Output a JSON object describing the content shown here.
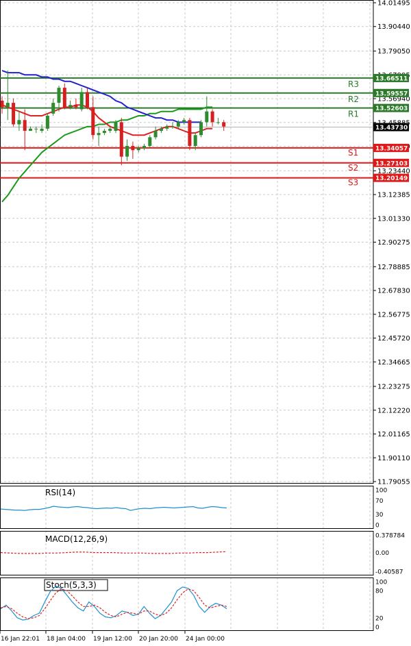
{
  "chart_data": {
    "type": "candlestick",
    "instrument_panel": {
      "y_ticks": [
        "14.01495",
        "13.90440",
        "13.79050",
        "13.67995",
        "13.56940",
        "13.45885",
        "13.34830",
        "13.23440",
        "13.12385",
        "13.01330",
        "12.90275",
        "12.78885",
        "12.67830",
        "12.56775",
        "12.45720",
        "12.34665",
        "12.23275",
        "12.12220",
        "12.01165",
        "11.90110",
        "11.79055"
      ],
      "ylim": [
        11.79055,
        14.01495
      ],
      "current_price": "13.43730",
      "candles": [
        {
          "o": 13.56,
          "h": 13.58,
          "l": 13.5,
          "c": 13.53
        },
        {
          "o": 13.53,
          "h": 13.7,
          "l": 13.47,
          "c": 13.55
        },
        {
          "o": 13.55,
          "h": 13.57,
          "l": 13.44,
          "c": 13.45
        },
        {
          "o": 13.45,
          "h": 13.51,
          "l": 13.42,
          "c": 13.47
        },
        {
          "o": 13.47,
          "h": 13.52,
          "l": 13.33,
          "c": 13.42
        },
        {
          "o": 13.42,
          "h": 13.44,
          "l": 13.42,
          "c": 13.43
        },
        {
          "o": 13.43,
          "h": 13.44,
          "l": 13.41,
          "c": 13.43
        },
        {
          "o": 13.42,
          "h": 13.45,
          "l": 13.41,
          "c": 13.43
        },
        {
          "o": 13.43,
          "h": 13.5,
          "l": 13.42,
          "c": 13.49
        },
        {
          "o": 13.5,
          "h": 13.57,
          "l": 13.49,
          "c": 13.55
        },
        {
          "o": 13.55,
          "h": 13.63,
          "l": 13.51,
          "c": 13.62
        },
        {
          "o": 13.62,
          "h": 13.64,
          "l": 13.52,
          "c": 13.53
        },
        {
          "o": 13.53,
          "h": 13.56,
          "l": 13.52,
          "c": 13.54
        },
        {
          "o": 13.54,
          "h": 13.57,
          "l": 13.52,
          "c": 13.53
        },
        {
          "o": 13.52,
          "h": 13.62,
          "l": 13.51,
          "c": 13.6
        },
        {
          "o": 13.6,
          "h": 13.62,
          "l": 13.52,
          "c": 13.53
        },
        {
          "o": 13.53,
          "h": 13.58,
          "l": 13.38,
          "c": 13.4
        },
        {
          "o": 13.4,
          "h": 13.44,
          "l": 13.35,
          "c": 13.41
        },
        {
          "o": 13.41,
          "h": 13.43,
          "l": 13.4,
          "c": 13.42
        },
        {
          "o": 13.42,
          "h": 13.44,
          "l": 13.41,
          "c": 13.43
        },
        {
          "o": 13.42,
          "h": 13.47,
          "l": 13.41,
          "c": 13.46
        },
        {
          "o": 13.46,
          "h": 13.48,
          "l": 13.26,
          "c": 13.3
        },
        {
          "o": 13.3,
          "h": 13.38,
          "l": 13.28,
          "c": 13.35
        },
        {
          "o": 13.35,
          "h": 13.37,
          "l": 13.29,
          "c": 13.33
        },
        {
          "o": 13.33,
          "h": 13.35,
          "l": 13.32,
          "c": 13.34
        },
        {
          "o": 13.34,
          "h": 13.36,
          "l": 13.33,
          "c": 13.35
        },
        {
          "o": 13.35,
          "h": 13.4,
          "l": 13.34,
          "c": 13.39
        },
        {
          "o": 13.39,
          "h": 13.44,
          "l": 13.38,
          "c": 13.42
        },
        {
          "o": 13.42,
          "h": 13.44,
          "l": 13.41,
          "c": 13.43
        },
        {
          "o": 13.43,
          "h": 13.45,
          "l": 13.42,
          "c": 13.44
        },
        {
          "o": 13.44,
          "h": 13.46,
          "l": 13.43,
          "c": 13.44
        },
        {
          "o": 13.44,
          "h": 13.47,
          "l": 13.43,
          "c": 13.46
        },
        {
          "o": 13.46,
          "h": 13.48,
          "l": 13.45,
          "c": 13.47
        },
        {
          "o": 13.47,
          "h": 13.48,
          "l": 13.33,
          "c": 13.35
        },
        {
          "o": 13.35,
          "h": 13.41,
          "l": 13.33,
          "c": 13.4
        },
        {
          "o": 13.4,
          "h": 13.47,
          "l": 13.39,
          "c": 13.46
        },
        {
          "o": 13.46,
          "h": 13.58,
          "l": 13.44,
          "c": 13.51
        },
        {
          "o": 13.51,
          "h": 13.52,
          "l": 13.44,
          "c": 13.46
        },
        {
          "o": 13.46,
          "h": 13.48,
          "l": 13.45,
          "c": 13.46
        },
        {
          "o": 13.46,
          "h": 13.47,
          "l": 13.42,
          "c": 13.44
        }
      ],
      "ma_green": [
        13.09,
        13.12,
        13.16,
        13.2,
        13.23,
        13.26,
        13.29,
        13.32,
        13.34,
        13.36,
        13.38,
        13.4,
        13.41,
        13.42,
        13.43,
        13.44,
        13.44,
        13.45,
        13.45,
        13.46,
        13.46,
        13.47,
        13.47,
        13.48,
        13.49,
        13.49,
        13.5,
        13.5,
        13.51,
        13.51,
        13.51,
        13.52,
        13.52,
        13.52,
        13.52,
        13.52,
        13.53,
        13.53
      ],
      "ma_blue": [
        13.7,
        13.69,
        13.69,
        13.69,
        13.68,
        13.68,
        13.68,
        13.67,
        13.67,
        13.66,
        13.66,
        13.65,
        13.65,
        13.64,
        13.63,
        13.62,
        13.61,
        13.6,
        13.59,
        13.58,
        13.56,
        13.55,
        13.53,
        13.52,
        13.51,
        13.5,
        13.49,
        13.48,
        13.48,
        13.47,
        13.47,
        13.46,
        13.46,
        13.46,
        13.46,
        13.46
      ],
      "ma_red": [
        13.54,
        13.53,
        13.52,
        13.51,
        13.5,
        13.49,
        13.49,
        13.49,
        13.5,
        13.51,
        13.52,
        13.53,
        13.53,
        13.54,
        13.54,
        13.53,
        13.51,
        13.48,
        13.46,
        13.44,
        13.43,
        13.42,
        13.41,
        13.4,
        13.4,
        13.4,
        13.41,
        13.42,
        13.43,
        13.44,
        13.44,
        13.43,
        13.42,
        13.41,
        13.41,
        13.42,
        13.43,
        13.43
      ],
      "levels": [
        {
          "name": "R3",
          "value": 13.66511,
          "label": "13.66511",
          "kind": "resistance"
        },
        {
          "name": "R2",
          "value": 13.59557,
          "label": "13.59557",
          "kind": "resistance"
        },
        {
          "name": "R1",
          "value": 13.52603,
          "label": "13.52603",
          "kind": "resistance"
        },
        {
          "name": "S1",
          "value": 13.34057,
          "label": "13.34057",
          "kind": "support"
        },
        {
          "name": "S2",
          "value": 13.27103,
          "label": "13.27103",
          "kind": "support"
        },
        {
          "name": "S3",
          "value": 13.20149,
          "label": "13.20149",
          "kind": "support"
        }
      ]
    },
    "rsi_panel": {
      "title": "RSI(14)",
      "ylim": [
        0,
        100
      ],
      "y_ticks": [
        "100",
        "70",
        "30",
        "0"
      ],
      "values": [
        45,
        44,
        43,
        42,
        42,
        41,
        43,
        44,
        44,
        46,
        49,
        53,
        51,
        50,
        49,
        51,
        52,
        50,
        49,
        47,
        46,
        47,
        48,
        47,
        49,
        47,
        46,
        41,
        44,
        46,
        47,
        46,
        48,
        49,
        50,
        49,
        48,
        49,
        50,
        51,
        52,
        48,
        47,
        50,
        52,
        51,
        49,
        48
      ]
    },
    "macd_panel": {
      "title": "MACD(12,26,9)",
      "ylim": [
        -0.40587,
        0.378784
      ],
      "y_ticks": [
        "0.378784",
        "0.00",
        "-0.40587"
      ],
      "signal": [
        0.0,
        -0.01,
        -0.02,
        -0.02,
        -0.02,
        -0.01,
        -0.01,
        0.0,
        0.01,
        0.01,
        0.0,
        0.0,
        0.0,
        -0.01,
        -0.01,
        -0.01,
        -0.02,
        -0.02,
        -0.02,
        -0.01,
        -0.01,
        0.0,
        0.0,
        0.01,
        0.02
      ]
    },
    "stoch_panel": {
      "title": "Stoch(5,3,3)",
      "ylim": [
        0,
        100
      ],
      "y_ticks": [
        "100",
        "80",
        "20",
        "0"
      ],
      "main": [
        40,
        48,
        35,
        20,
        15,
        17,
        25,
        30,
        55,
        78,
        90,
        85,
        70,
        55,
        42,
        35,
        55,
        45,
        30,
        22,
        20,
        25,
        35,
        32,
        25,
        28,
        45,
        30,
        18,
        25,
        40,
        55,
        80,
        88,
        85,
        70,
        45,
        32,
        45,
        52,
        48,
        40
      ],
      "signal": [
        42,
        45,
        40,
        30,
        22,
        18,
        20,
        25,
        40,
        58,
        75,
        84,
        80,
        68,
        55,
        45,
        45,
        48,
        42,
        32,
        25,
        22,
        28,
        32,
        30,
        28,
        35,
        35,
        28,
        25,
        30,
        42,
        60,
        75,
        84,
        80,
        65,
        48,
        42,
        45,
        48,
        45
      ]
    },
    "x_ticks": [
      "16 Jan 22:01",
      "18 Jan 04:00",
      "19 Jan 12:00",
      "20 Jan 20:00",
      "24 Jan 00:00"
    ]
  },
  "colors": {
    "bull": "#2e8b2e",
    "bear": "#d42020",
    "ma_green": "#1a9a1a",
    "ma_blue": "#2020d0",
    "ma_red": "#e02020",
    "resistance": "#2a7a2a",
    "support": "#e01818",
    "rsi_line": "#1e90d0",
    "macd_signal": "#e02020",
    "stoch_main": "#1e90d0",
    "stoch_signal": "#e02020"
  }
}
